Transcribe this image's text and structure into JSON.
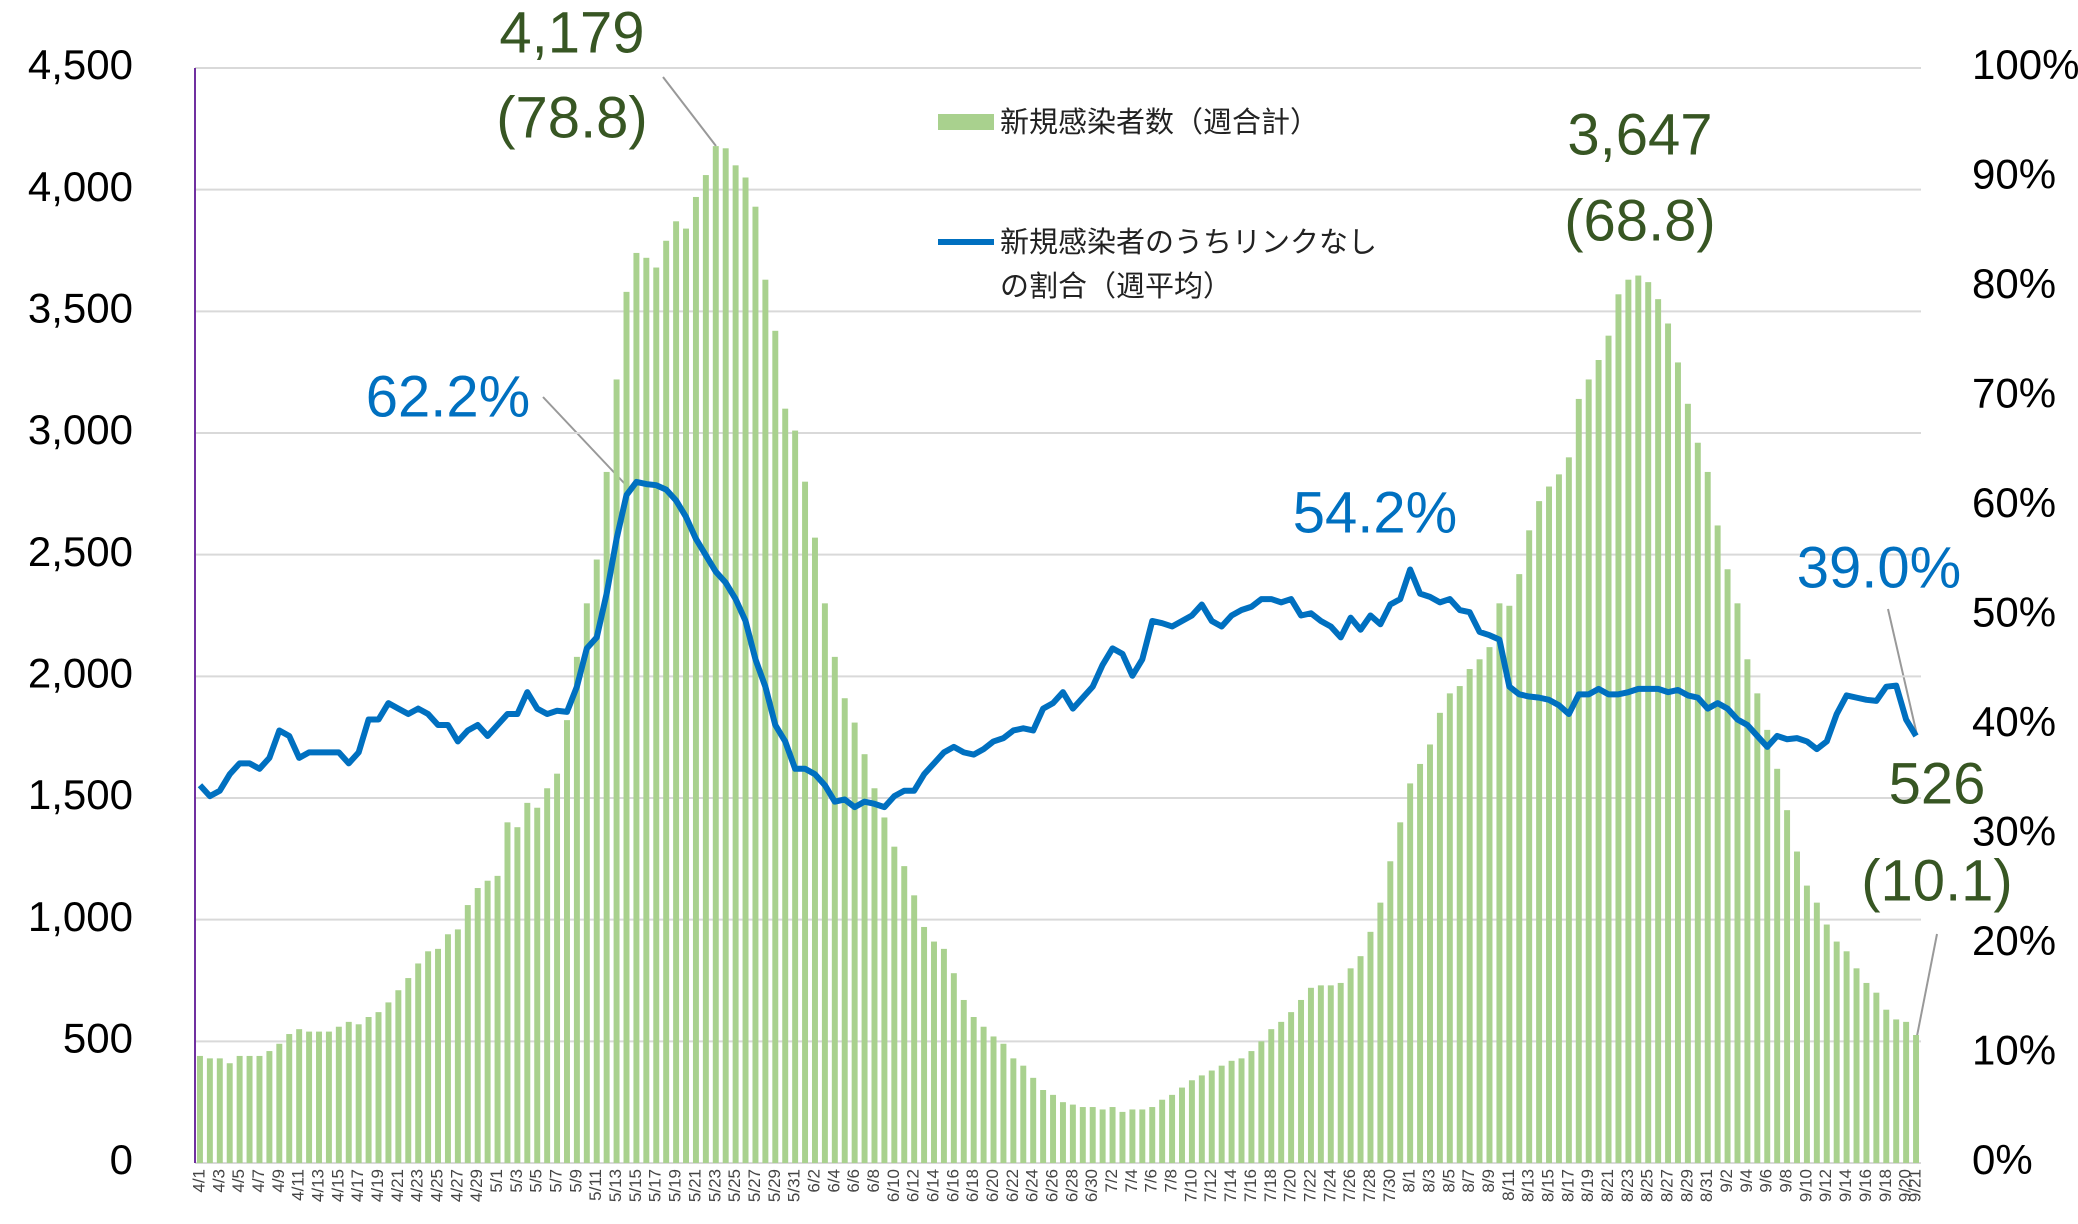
{
  "chart_data": {
    "type": "bar_line",
    "categories": [
      "4/1",
      null,
      "4/3",
      null,
      "4/5",
      null,
      "4/7",
      null,
      "4/9",
      null,
      "4/11",
      null,
      "4/13",
      null,
      "4/15",
      null,
      "4/17",
      null,
      "4/19",
      null,
      "4/21",
      null,
      "4/23",
      null,
      "4/25",
      null,
      "4/27",
      null,
      "4/29",
      null,
      "5/1",
      null,
      "5/3",
      null,
      "5/5",
      null,
      "5/7",
      null,
      "5/9",
      null,
      "5/11",
      null,
      "5/13",
      null,
      "5/15",
      null,
      "5/17",
      null,
      "5/19",
      null,
      "5/21",
      null,
      "5/23",
      null,
      "5/25",
      null,
      "5/27",
      null,
      "5/29",
      null,
      "5/31",
      null,
      "6/2",
      null,
      "6/4",
      null,
      "6/6",
      null,
      "6/8",
      null,
      "6/10",
      null,
      "6/12",
      null,
      "6/14",
      null,
      "6/16",
      null,
      "6/18",
      null,
      "6/20",
      null,
      "6/22",
      null,
      "6/24",
      null,
      "6/26",
      null,
      "6/28",
      null,
      "6/30",
      null,
      "7/2",
      null,
      "7/4",
      null,
      "7/6",
      null,
      "7/8",
      null,
      "7/10",
      null,
      "7/12",
      null,
      "7/14",
      null,
      "7/16",
      null,
      "7/18",
      null,
      "7/20",
      null,
      "7/22",
      null,
      "7/24",
      null,
      "7/26",
      null,
      "7/28",
      null,
      "7/30",
      null,
      "8/1",
      null,
      "8/3",
      null,
      "8/5",
      null,
      "8/7",
      null,
      "8/9",
      null,
      "8/11",
      null,
      "8/13",
      null,
      "8/15",
      null,
      "8/17",
      null,
      "8/19",
      null,
      "8/21",
      null,
      "8/23",
      null,
      "8/25",
      null,
      "8/27",
      null,
      "8/29",
      null,
      "8/31",
      null,
      "9/2",
      null,
      "9/4",
      null,
      "9/6",
      null,
      "9/8",
      null,
      "9/10",
      null,
      "9/12",
      null,
      "9/14",
      null,
      "9/16",
      null,
      "9/18",
      null,
      "9/20",
      "9/21"
    ],
    "series": [
      {
        "name": "新規感染者数（週合計）",
        "color": "#a9d18e",
        "values": [
          440,
          430,
          430,
          410,
          440,
          440,
          440,
          460,
          490,
          530,
          550,
          540,
          540,
          540,
          560,
          580,
          570,
          600,
          620,
          660,
          710,
          760,
          820,
          870,
          880,
          940,
          960,
          1060,
          1130,
          1160,
          1180,
          1400,
          1380,
          1480,
          1460,
          1540,
          1600,
          1820,
          2080,
          2300,
          2480,
          2840,
          3220,
          3580,
          3740,
          3720,
          3680,
          3790,
          3870,
          3840,
          3970,
          4060,
          4179,
          4170,
          4100,
          4050,
          3930,
          3630,
          3420,
          3100,
          3010,
          2800,
          2570,
          2300,
          2080,
          1910,
          1810,
          1680,
          1540,
          1420,
          1300,
          1220,
          1100,
          970,
          910,
          880,
          780,
          670,
          600,
          560,
          520,
          490,
          430,
          400,
          350,
          300,
          280,
          250,
          240,
          230,
          230,
          220,
          230,
          210,
          220,
          220,
          230,
          260,
          280,
          310,
          340,
          360,
          380,
          400,
          420,
          430,
          460,
          500,
          550,
          580,
          620,
          670,
          720,
          730,
          730,
          740,
          800,
          850,
          950,
          1070,
          1240,
          1400,
          1560,
          1640,
          1720,
          1850,
          1930,
          1960,
          2030,
          2070,
          2120,
          2300,
          2290,
          2420,
          2600,
          2720,
          2780,
          2830,
          2900,
          3140,
          3220,
          3300,
          3400,
          3570,
          3630,
          3647,
          3620,
          3550,
          3450,
          3290,
          3120,
          2960,
          2840,
          2620,
          2440,
          2300,
          2070,
          1930,
          1780,
          1620,
          1450,
          1280,
          1140,
          1070,
          980,
          910,
          870,
          800,
          740,
          700,
          630,
          590,
          580,
          526
        ]
      },
      {
        "name": "新規感染者のうちリンクなしの割合（週平均）",
        "color": "#0070c0",
        "axis": "y2",
        "values": [
          34.5,
          33.5,
          34,
          35.5,
          36.5,
          36.5,
          36,
          37,
          39.5,
          39,
          37,
          37.5,
          37.5,
          37.5,
          37.5,
          36.5,
          37.5,
          40.5,
          40.5,
          42,
          41.5,
          41,
          41.5,
          41,
          40,
          40,
          38.5,
          39.5,
          40,
          39,
          40,
          41,
          41,
          43,
          41.5,
          41,
          41.3,
          41.2,
          43.5,
          47,
          48,
          52,
          57,
          61,
          62.2,
          62,
          61.9,
          61.5,
          60.5,
          59,
          57,
          55.5,
          54,
          53,
          51.5,
          49.5,
          46,
          43.5,
          40,
          38.5,
          36,
          36,
          35.5,
          34.5,
          33,
          33.2,
          32.5,
          33,
          32.8,
          32.5,
          33.5,
          34,
          34,
          35.5,
          36.5,
          37.5,
          38,
          37.5,
          37.3,
          37.8,
          38.5,
          38.8,
          39.5,
          39.7,
          39.5,
          41.5,
          42,
          43,
          41.5,
          42.5,
          43.5,
          45.5,
          47,
          46.5,
          44.5,
          46,
          49.5,
          49.3,
          49,
          49.5,
          50,
          51,
          49.5,
          49,
          50,
          50.5,
          50.8,
          51.5,
          51.5,
          51.2,
          51.5,
          50,
          50.2,
          49.5,
          49,
          48,
          49.8,
          48.7,
          50,
          49.2,
          51,
          51.5,
          54.2,
          52,
          51.7,
          51.2,
          51.5,
          50.5,
          50.3,
          48.5,
          48.2,
          47.8,
          43.5,
          42.8,
          42.6,
          42.5,
          42.3,
          41.8,
          41,
          42.8,
          42.8,
          43.3,
          42.8,
          42.8,
          43,
          43.3,
          43.3,
          43.3,
          43,
          43.2,
          42.7,
          42.5,
          41.5,
          42,
          41.5,
          40.5,
          40,
          39,
          38,
          39,
          38.7,
          38.8,
          38.5,
          37.8,
          38.5,
          41,
          42.7,
          42.5,
          42.3,
          42.2,
          43.5,
          43.6,
          40.5,
          39.0
        ]
      }
    ],
    "ylim": [
      0,
      4500
    ],
    "yticks": [
      0,
      500,
      {
        "value": 1000,
        "label": "1,000"
      },
      {
        "value": 1500,
        "label": "1,500"
      },
      {
        "value": 2000,
        "label": "2,000"
      },
      {
        "value": 2500,
        "label": "2,500"
      },
      {
        "value": 3000,
        "label": "3,000"
      },
      {
        "value": 3500,
        "label": "3,500"
      },
      {
        "value": 4000,
        "label": "4,000"
      },
      {
        "value": 4500,
        "label": "4,500"
      }
    ],
    "y2lim": [
      0,
      100
    ],
    "y2ticks": [
      {
        "value": 0,
        "label": "0%"
      },
      {
        "value": 10,
        "label": "10%"
      },
      {
        "value": 20,
        "label": "20%"
      },
      {
        "value": 30,
        "label": "30%"
      },
      {
        "value": 40,
        "label": "40%"
      },
      {
        "value": 50,
        "label": "50%"
      },
      {
        "value": 60,
        "label": "60%"
      },
      {
        "value": 70,
        "label": "70%"
      },
      {
        "value": 80,
        "label": "80%"
      },
      {
        "value": 90,
        "label": "90%"
      },
      {
        "value": 100,
        "label": "100%"
      }
    ],
    "grid": true,
    "annotations": [
      "4,179",
      "(78.8)",
      "3,647",
      "(68.8)",
      "526",
      "(10.1)",
      "62.2%",
      "54.2%",
      "39.0%"
    ]
  }
}
